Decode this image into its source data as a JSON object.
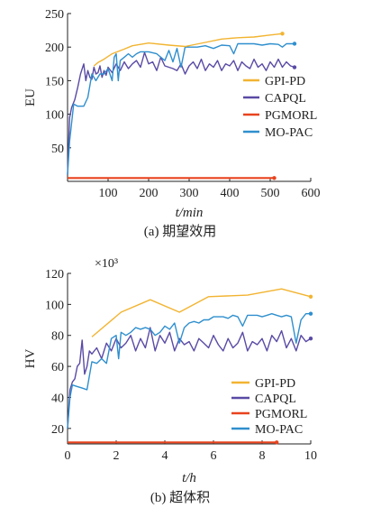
{
  "chart_data": [
    {
      "type": "line",
      "caption": "(a) 期望效用",
      "xlabel": "t/min",
      "ylabel": "EU",
      "xlim": [
        0,
        600
      ],
      "ylim": [
        0,
        250
      ],
      "xticks": [
        100,
        200,
        300,
        400,
        500,
        600
      ],
      "yticks": [
        50,
        100,
        150,
        200,
        250
      ],
      "legend_position": "middle-right",
      "series": [
        {
          "name": "GPI-PD",
          "color": "#f2b431",
          "end_marker": true,
          "x": [
            65,
            75,
            90,
            110,
            140,
            160,
            200,
            250,
            290,
            340,
            380,
            420,
            460,
            500,
            530
          ],
          "y": [
            172,
            177,
            182,
            190,
            197,
            202,
            206,
            203,
            201,
            207,
            212,
            214,
            215,
            218,
            220
          ]
        },
        {
          "name": "CAPQL",
          "color": "#5a4aa5",
          "end_marker": true,
          "x": [
            0,
            5,
            10,
            18,
            25,
            32,
            40,
            45,
            50,
            55,
            60,
            65,
            70,
            75,
            80,
            85,
            90,
            95,
            100,
            110,
            120,
            130,
            140,
            150,
            160,
            170,
            180,
            190,
            200,
            210,
            220,
            230,
            240,
            250,
            260,
            270,
            280,
            290,
            300,
            310,
            320,
            330,
            340,
            350,
            360,
            370,
            380,
            390,
            400,
            410,
            420,
            430,
            440,
            450,
            460,
            470,
            480,
            490,
            500,
            510,
            520,
            530,
            540,
            550,
            560
          ],
          "y": [
            10,
            95,
            110,
            122,
            140,
            160,
            175,
            150,
            165,
            155,
            152,
            170,
            160,
            162,
            172,
            155,
            165,
            158,
            170,
            162,
            175,
            165,
            178,
            168,
            175,
            180,
            170,
            192,
            175,
            178,
            165,
            185,
            172,
            170,
            168,
            165,
            175,
            160,
            172,
            178,
            168,
            182,
            165,
            175,
            170,
            180,
            165,
            175,
            172,
            180,
            165,
            178,
            172,
            168,
            182,
            170,
            175,
            165,
            178,
            170,
            182,
            170,
            178,
            172,
            170
          ]
        },
        {
          "name": "PGMORL",
          "color": "#e8431e",
          "end_marker": true,
          "x": [
            0,
            60,
            100,
            200,
            300,
            400,
            500,
            510
          ],
          "y": [
            5,
            5,
            5,
            5,
            5,
            5,
            5,
            5
          ]
        },
        {
          "name": "MO-PAC",
          "color": "#2f8fce",
          "end_marker": true,
          "x": [
            0,
            5,
            15,
            25,
            40,
            50,
            60,
            70,
            80,
            90,
            100,
            110,
            115,
            120,
            125,
            130,
            140,
            150,
            160,
            170,
            180,
            200,
            220,
            230,
            240,
            250,
            260,
            270,
            280,
            290,
            300,
            320,
            340,
            360,
            380,
            400,
            410,
            420,
            440,
            460,
            480,
            500,
            520,
            530,
            540,
            550,
            560
          ],
          "y": [
            10,
            60,
            115,
            112,
            112,
            125,
            160,
            150,
            160,
            160,
            168,
            150,
            185,
            190,
            150,
            180,
            185,
            190,
            185,
            190,
            193,
            193,
            190,
            185,
            180,
            195,
            178,
            198,
            170,
            200,
            200,
            200,
            202,
            198,
            203,
            202,
            190,
            205,
            205,
            205,
            203,
            205,
            204,
            200,
            205,
            205,
            205
          ]
        }
      ]
    },
    {
      "type": "line",
      "caption": "(b) 超体积",
      "xlabel": "t/h",
      "ylabel": "HV",
      "scale_note": "×10³",
      "xlim": [
        0,
        10
      ],
      "ylim": [
        10,
        120
      ],
      "xticks": [
        0,
        2,
        4,
        6,
        8,
        10
      ],
      "yticks": [
        20,
        40,
        60,
        80,
        100,
        120
      ],
      "legend_position": "lower-right",
      "series": [
        {
          "name": "GPI-PD",
          "color": "#f2b431",
          "end_marker": true,
          "x": [
            1.0,
            2.2,
            3.4,
            4.6,
            5.8,
            7.4,
            8.8,
            10.0
          ],
          "y": [
            79,
            95,
            103,
            95,
            105,
            106,
            110,
            105
          ]
        },
        {
          "name": "CAPQL",
          "color": "#5a4aa5",
          "end_marker": true,
          "x": [
            0,
            0.1,
            0.2,
            0.3,
            0.4,
            0.5,
            0.6,
            0.7,
            0.8,
            0.9,
            1.0,
            1.2,
            1.4,
            1.6,
            1.8,
            2.0,
            2.2,
            2.4,
            2.6,
            2.8,
            3.0,
            3.2,
            3.4,
            3.6,
            3.8,
            4.0,
            4.2,
            4.4,
            4.6,
            4.8,
            5.0,
            5.2,
            5.4,
            5.6,
            5.8,
            6.0,
            6.2,
            6.4,
            6.6,
            6.8,
            7.0,
            7.2,
            7.4,
            7.6,
            7.8,
            8.0,
            8.2,
            8.4,
            8.6,
            8.8,
            9.0,
            9.2,
            9.4,
            9.6,
            9.8,
            10.0
          ],
          "y": [
            20,
            45,
            50,
            52,
            60,
            62,
            77,
            55,
            60,
            70,
            68,
            72,
            65,
            75,
            70,
            78,
            72,
            75,
            80,
            70,
            78,
            72,
            85,
            70,
            80,
            75,
            82,
            70,
            78,
            74,
            76,
            70,
            78,
            75,
            72,
            80,
            74,
            70,
            78,
            72,
            75,
            82,
            70,
            76,
            74,
            78,
            70,
            80,
            76,
            83,
            72,
            78,
            70,
            80,
            76,
            78
          ]
        },
        {
          "name": "PGMORL",
          "color": "#e8431e",
          "end_marker": true,
          "x": [
            0,
            1,
            2,
            3,
            4,
            5,
            6,
            7,
            8,
            8.6
          ],
          "y": [
            11,
            11,
            11,
            11,
            11,
            11,
            11,
            11,
            11,
            11
          ]
        },
        {
          "name": "MO-PAC",
          "color": "#2f8fce",
          "end_marker": true,
          "x": [
            0,
            0.1,
            0.2,
            0.4,
            0.6,
            0.8,
            1.0,
            1.2,
            1.4,
            1.6,
            1.8,
            2.0,
            2.1,
            2.2,
            2.4,
            2.6,
            2.8,
            3.0,
            3.2,
            3.4,
            3.6,
            3.8,
            4.0,
            4.2,
            4.4,
            4.6,
            4.8,
            5.0,
            5.2,
            5.4,
            5.6,
            5.8,
            6.0,
            6.2,
            6.4,
            6.6,
            6.8,
            7.0,
            7.2,
            7.4,
            7.6,
            7.8,
            8.0,
            8.2,
            8.4,
            8.6,
            8.8,
            9.0,
            9.2,
            9.4,
            9.6,
            9.8,
            10.0
          ],
          "y": [
            20,
            40,
            48,
            47,
            46,
            45,
            63,
            62,
            65,
            62,
            78,
            80,
            65,
            82,
            80,
            82,
            85,
            84,
            85,
            84,
            80,
            82,
            86,
            84,
            88,
            75,
            85,
            88,
            89,
            88,
            90,
            90,
            92,
            92,
            92,
            91,
            93,
            92,
            86,
            93,
            93,
            93,
            92,
            93,
            94,
            93,
            92,
            93,
            92,
            75,
            90,
            94,
            94
          ]
        }
      ]
    }
  ]
}
